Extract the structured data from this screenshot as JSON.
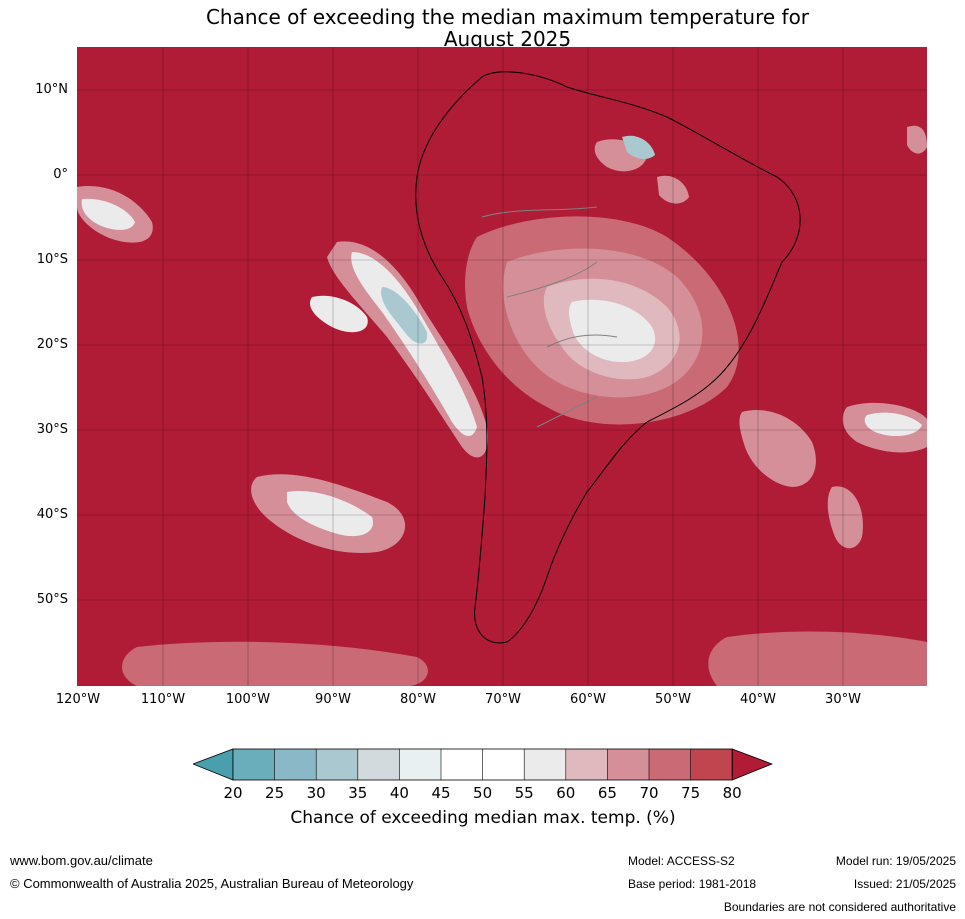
{
  "title_line1": "Chance of exceeding the median maximum temperature for",
  "title_line2": "August 2025",
  "lat_labels": [
    "10°N",
    "0°",
    "10°S",
    "20°S",
    "30°S",
    "40°S",
    "50°S"
  ],
  "lon_labels": [
    "120°W",
    "110°W",
    "100°W",
    "90°W",
    "80°W",
    "70°W",
    "60°W",
    "50°W",
    "40°W",
    "30°W"
  ],
  "colorbar": {
    "ticks": [
      "20",
      "25",
      "30",
      "35",
      "40",
      "45",
      "50",
      "55",
      "60",
      "65",
      "70",
      "75",
      "80"
    ],
    "colors": [
      "#4a9fae",
      "#6aaebb",
      "#8ab8c6",
      "#a9c8d0",
      "#d3dade",
      "#e8f0f2",
      "#ffffff",
      "#ffffff",
      "#ebebec",
      "#e0b9bf",
      "#d48f98",
      "#c96a74",
      "#c0454f",
      "#b01b36"
    ],
    "label": "Chance of exceeding median max. temp. (%)"
  },
  "footer": {
    "url": "www.bom.gov.au/climate",
    "copyright": "© Commonwealth of Australia 2025, Australian Bureau of Meteorology",
    "model": "Model: ACCESS-S2",
    "base_period": "Base period: 1981-2018",
    "model_run": "Model run: 19/05/2025",
    "issued": "Issued: 21/05/2025",
    "boundaries_note": "Boundaries are not considered authoritative"
  }
}
